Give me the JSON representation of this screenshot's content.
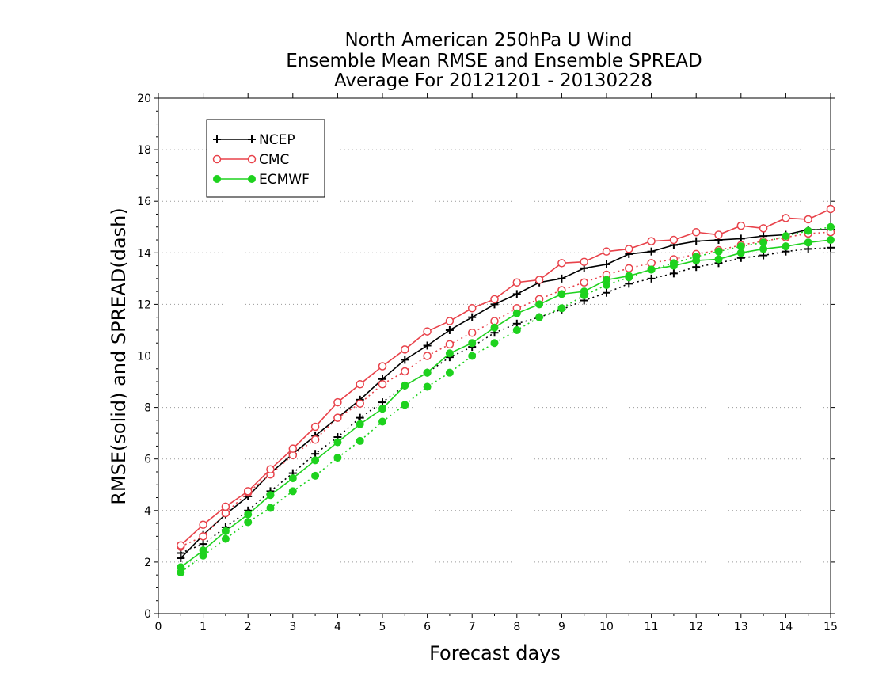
{
  "chart_data": {
    "type": "line",
    "title": [
      "North American 250hPa U Wind",
      "Ensemble Mean RMSE and Ensemble SPREAD",
      "Average For 20121201 - 20130228"
    ],
    "xlabel": "Forecast days",
    "ylabel": "RMSE(solid) and SPREAD(dash)",
    "xlim": [
      0,
      15
    ],
    "ylim": [
      0,
      20
    ],
    "xticks": [
      "0",
      "1",
      "2",
      "3",
      "4",
      "5",
      "6",
      "7",
      "8",
      "9",
      "10",
      "11",
      "12",
      "13",
      "14",
      "15"
    ],
    "yticks": [
      "0",
      "2",
      "4",
      "6",
      "8",
      "10",
      "12",
      "14",
      "16",
      "18",
      "20"
    ],
    "grid": "horizontal dotted",
    "legend_position": "top-left",
    "x": [
      0.5,
      1,
      1.5,
      2,
      2.5,
      3,
      3.5,
      4,
      4.5,
      5,
      5.5,
      6,
      6.5,
      7,
      7.5,
      8,
      8.5,
      9,
      9.5,
      10,
      10.5,
      11,
      11.5,
      12,
      12.5,
      13,
      13.5,
      14,
      14.5,
      15
    ],
    "series": [
      {
        "name": "NCEP",
        "color": "#000000",
        "marker": "plus",
        "rmse": [
          2.15,
          3.05,
          3.85,
          4.55,
          5.45,
          6.2,
          6.9,
          7.6,
          8.3,
          9.1,
          9.85,
          10.4,
          11.0,
          11.5,
          12.0,
          12.4,
          12.85,
          13.0,
          13.4,
          13.55,
          13.95,
          14.05,
          14.3,
          14.45,
          14.5,
          14.55,
          14.65,
          14.7,
          14.9,
          14.9
        ],
        "spread": [
          2.35,
          2.7,
          3.35,
          4.0,
          4.75,
          5.45,
          6.2,
          6.85,
          7.6,
          8.2,
          8.85,
          9.35,
          9.95,
          10.35,
          10.9,
          11.25,
          11.5,
          11.8,
          12.15,
          12.45,
          12.8,
          13.0,
          13.2,
          13.45,
          13.6,
          13.8,
          13.9,
          14.05,
          14.15,
          14.2
        ]
      },
      {
        "name": "CMC",
        "color": "#e8424a",
        "marker": "circle",
        "rmse": [
          2.65,
          3.45,
          4.15,
          4.75,
          5.6,
          6.4,
          7.25,
          8.2,
          8.9,
          9.6,
          10.25,
          10.95,
          11.35,
          11.85,
          12.2,
          12.85,
          12.95,
          13.6,
          13.65,
          14.05,
          14.15,
          14.45,
          14.5,
          14.8,
          14.7,
          15.05,
          14.95,
          15.35,
          15.3,
          15.7
        ],
        "spread": [
          2.6,
          3.0,
          3.9,
          4.7,
          5.4,
          6.15,
          6.75,
          7.6,
          8.15,
          8.9,
          9.4,
          10.0,
          10.45,
          10.9,
          11.35,
          11.85,
          12.2,
          12.55,
          12.85,
          13.15,
          13.4,
          13.6,
          13.75,
          13.95,
          14.1,
          14.3,
          14.45,
          14.6,
          14.75,
          14.8
        ]
      },
      {
        "name": "ECMWF",
        "color": "#1ed21e",
        "marker": "dot",
        "rmse": [
          1.8,
          2.45,
          3.2,
          3.85,
          4.6,
          5.25,
          5.95,
          6.65,
          7.35,
          7.95,
          8.85,
          9.35,
          10.1,
          10.5,
          11.1,
          11.65,
          12.0,
          12.4,
          12.5,
          12.95,
          13.1,
          13.35,
          13.5,
          13.7,
          13.75,
          14.0,
          14.15,
          14.25,
          14.4,
          14.5
        ],
        "spread": [
          1.6,
          2.25,
          2.9,
          3.55,
          4.1,
          4.75,
          5.35,
          6.05,
          6.7,
          7.45,
          8.1,
          8.8,
          9.35,
          10.0,
          10.5,
          11.0,
          11.5,
          11.85,
          12.35,
          12.75,
          13.05,
          13.35,
          13.6,
          13.85,
          14.05,
          14.25,
          14.4,
          14.65,
          14.85,
          15.0
        ]
      }
    ]
  }
}
